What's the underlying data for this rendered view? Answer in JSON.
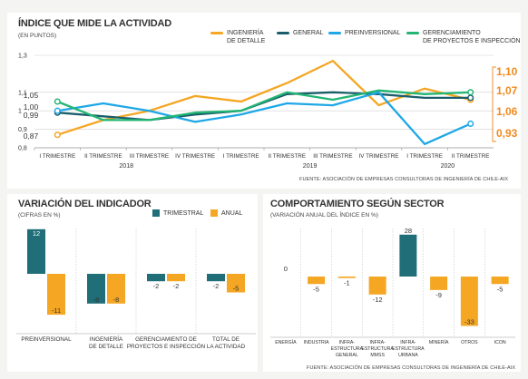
{
  "colors": {
    "ingenieria": "#f5a623",
    "general": "#1b5e6b",
    "preinversional": "#1ea7e6",
    "gerenciamiento": "#22b573",
    "trimestral": "#1f6e78",
    "anual": "#f5a623",
    "highlight_orange": "#f08a1e",
    "grid": "#d0d0d0"
  },
  "top": {
    "title": "ÍNDICE QUE MIDE LA ACTIVIDAD",
    "subtitle": "(EN PUNTOS)",
    "source": "FUENTE: ASOCIACIÓN DE EMPRESAS CONSULTORAS DE INGENIERÍA DE CHILE-AIX",
    "legend": [
      {
        "key": "ingenieria",
        "label_line1": "INGENIERÍA",
        "label_line2": "DE DETALLE"
      },
      {
        "key": "general",
        "label_line1": "GENERAL",
        "label_line2": ""
      },
      {
        "key": "preinversional",
        "label_line1": "PREINVERSIONAL",
        "label_line2": ""
      },
      {
        "key": "gerenciamiento",
        "label_line1": "GERENCIAMIENTO",
        "label_line2": "DE PROYECTOS E INSPECCIÓN"
      }
    ],
    "left_labels": [
      "1,05",
      "1,00",
      "0,99",
      "0,87"
    ],
    "right_labels": [
      "1,10",
      "1,07",
      "1,06",
      "0,93"
    ]
  },
  "bottom_left": {
    "title": "VARIACIÓN DEL INDICADOR",
    "subtitle": "(CIFRAS EN %)",
    "legend": [
      "TRIMESTRAL",
      "ANUAL"
    ]
  },
  "bottom_right": {
    "title": "COMPORTAMIENTO SEGÚN SECTOR",
    "subtitle": "(VARIACIÓN ANUAL DEL ÍNDICE EN %)",
    "source": "FUENTE: ASOCIACIÓN DE EMPRESAS CONSULTORAS DE INGENIERÍA DE CHILE-AIX"
  },
  "chart_data": [
    {
      "type": "line",
      "title": "ÍNDICE QUE MIDE LA ACTIVIDAD",
      "ylabel": "(EN PUNTOS)",
      "categories": [
        "I TRIMESTRE",
        "II TRIMESTRE",
        "III TRIMESTRE",
        "IV TRIMESTRE",
        "I TRIMESTRE",
        "II TRIMESTRE",
        "III TRIMESTRE",
        "IV TRIMESTRE",
        "I TRIMESTRE",
        "II TRIMESTRE"
      ],
      "year_labels": [
        {
          "label": "2018",
          "from": 0,
          "to": 3
        },
        {
          "label": "2019",
          "from": 4,
          "to": 7
        },
        {
          "label": "2020",
          "from": 8,
          "to": 9
        }
      ],
      "yticks": [
        "0,8",
        "0,9",
        "1",
        "1,1",
        "1,3"
      ],
      "ylim": [
        0.8,
        1.3
      ],
      "grid": true,
      "series": [
        {
          "name": "INGENIERÍA DE DETALLE",
          "key": "ingenieria",
          "values": [
            0.87,
            0.95,
            1.0,
            1.08,
            1.05,
            1.15,
            1.27,
            1.03,
            1.12,
            1.06
          ]
        },
        {
          "name": "GENERAL",
          "key": "general",
          "values": [
            0.99,
            0.97,
            0.95,
            0.98,
            1.0,
            1.09,
            1.1,
            1.09,
            1.07,
            1.07
          ]
        },
        {
          "name": "PREINVERSIONAL",
          "key": "preinversional",
          "values": [
            1.0,
            1.04,
            1.0,
            0.94,
            0.98,
            1.04,
            1.03,
            1.1,
            0.82,
            0.93
          ]
        },
        {
          "name": "GERENCIAMIENTO DE PROYECTOS E INSPECCIÓN",
          "key": "gerenciamiento",
          "values": [
            1.05,
            0.95,
            0.95,
            0.99,
            1.0,
            1.1,
            1.06,
            1.11,
            1.09,
            1.1
          ]
        }
      ]
    },
    {
      "type": "bar",
      "title": "VARIACIÓN DEL INDICADOR",
      "ylabel": "(CIFRAS EN %)",
      "categories": [
        "PREINVERSIONAL",
        "INGENIERÍA DE DETALLE",
        "GERENCIAMIENTO DE PROYECTOS E INSPECCIÓN",
        "TOTAL DE LA ACTIVIDAD"
      ],
      "category_lines": [
        [
          "PREINVERSIONAL"
        ],
        [
          "INGENIERÍA",
          "DE DETALLE"
        ],
        [
          "GERENCIAMIENTO DE",
          "PROYECTOS E INSPECCIÓN"
        ],
        [
          "TOTAL DE",
          "LA ACTIVIDAD"
        ]
      ],
      "series": [
        {
          "name": "TRIMESTRAL",
          "key": "trimestral",
          "values": [
            12,
            -8,
            -2,
            -2
          ]
        },
        {
          "name": "ANUAL",
          "key": "anual",
          "values": [
            -11,
            -8,
            -2,
            -5
          ]
        }
      ],
      "ylim": [
        -13,
        13
      ]
    },
    {
      "type": "bar",
      "title": "COMPORTAMIENTO SEGÚN SECTOR",
      "ylabel": "(VARIACIÓN ANUAL DEL ÍNDICE EN %)",
      "categories": [
        "ENERGÍA",
        "INDUSTRIA",
        "INFRA-ESTRUCTURA GENERAL",
        "INFRA-ESTRUCTURA MMSS",
        "INFRA-ESTRUCTURA URBANA",
        "MINERÍA",
        "OTROS",
        "ICON"
      ],
      "category_lines": [
        [
          "ENERGÍA"
        ],
        [
          "INDUSTRIA"
        ],
        [
          "INFRA-",
          "ESTRUCTURA",
          "GENERAL"
        ],
        [
          "INFRA-",
          "ESTRUCTURA",
          "MMSS"
        ],
        [
          "INFRA-",
          "ESTRUCTURA",
          "URBANA"
        ],
        [
          "MINERÍA"
        ],
        [
          "OTROS"
        ],
        [
          "ICON"
        ]
      ],
      "values": [
        0,
        -5,
        -1,
        -12,
        28,
        -9,
        -33,
        -5
      ],
      "ylim": [
        -35,
        30
      ]
    }
  ]
}
